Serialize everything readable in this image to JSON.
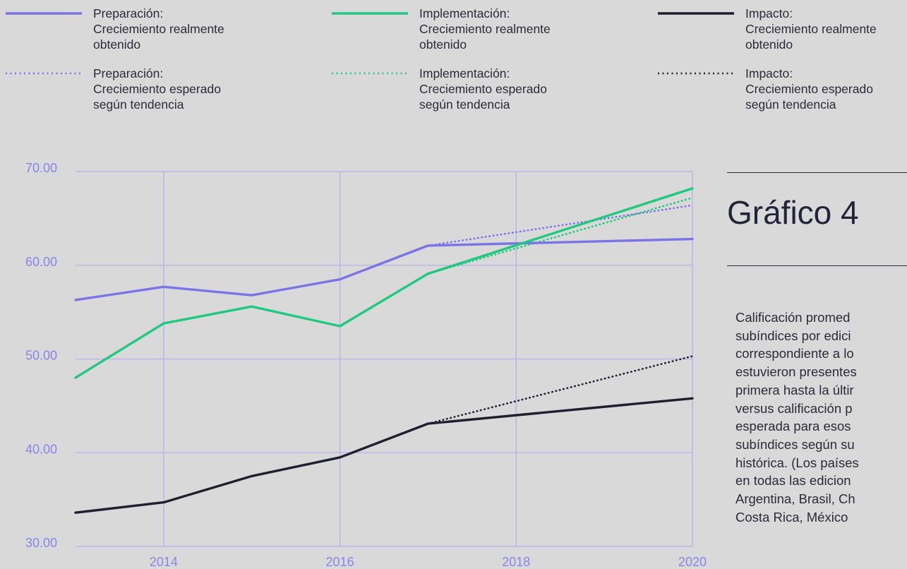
{
  "legend": [
    {
      "lines": [
        "Preparación:",
        "Creciemiento realmente",
        "obtenido"
      ],
      "color": "#7b74e6",
      "style": "solid"
    },
    {
      "lines": [
        "Implementación:",
        "Creciemiento realmente",
        "obtenido"
      ],
      "color": "#1fc97f",
      "style": "solid"
    },
    {
      "lines": [
        "Impacto:",
        "Creciemiento realmente",
        "obtenido"
      ],
      "color": "#1f1f30",
      "style": "solid"
    },
    {
      "lines": [
        "Preparación:",
        "Creciemiento esperado",
        "según tendencia"
      ],
      "color": "#7b74e6",
      "style": "dotted"
    },
    {
      "lines": [
        "Implementación:",
        "Creciemiento esperado",
        "según tendencia"
      ],
      "color": "#1fc97f",
      "style": "dotted"
    },
    {
      "lines": [
        "Impacto:",
        "Creciemiento esperado",
        "según tendencia"
      ],
      "color": "#1f1f30",
      "style": "dotted"
    }
  ],
  "chart_title": "Gráfico 4",
  "description_lines": [
    "Calificación promed",
    "subíndices por edici",
    "correspondiente a lo",
    "estuvieron presentes",
    "primera hasta la últir",
    "versus calificación p",
    "esperada para esos",
    "subíndices según su",
    "histórica. (Los países",
    "en todas las edicion",
    "Argentina, Brasil, Ch",
    "Costa Rica, México"
  ],
  "chart_data": {
    "type": "line",
    "title": "Gráfico 4",
    "x_ticks": [
      "2014",
      "2016",
      "2018",
      "2020"
    ],
    "y_ticks": [
      "30.00",
      "40.00",
      "50.00",
      "60.00",
      "70.00"
    ],
    "ylim": [
      30,
      70
    ],
    "xlim": [
      2013,
      2020
    ],
    "grid": true,
    "colors": {
      "axis": "#8a84ea",
      "grid": "#b3b0ee",
      "preparacion": "#7b74e6",
      "implementacion": "#1fc97f",
      "impacto": "#1f1f30"
    },
    "series": [
      {
        "name": "Preparación: Creciemiento realmente obtenido",
        "color": "#7b74e6",
        "style": "solid",
        "x": [
          2013,
          2014,
          2015,
          2016,
          2017,
          2020
        ],
        "y": [
          56.3,
          57.7,
          56.8,
          58.5,
          62.1,
          62.8
        ]
      },
      {
        "name": "Implementación: Creciemiento realmente obtenido",
        "color": "#1fc97f",
        "style": "solid",
        "x": [
          2013,
          2014,
          2015,
          2016,
          2017,
          2020
        ],
        "y": [
          48.0,
          53.8,
          55.6,
          53.5,
          59.1,
          68.2
        ]
      },
      {
        "name": "Impacto: Creciemiento realmente obtenido",
        "color": "#1f1f30",
        "style": "solid",
        "x": [
          2013,
          2014,
          2015,
          2016,
          2017,
          2020
        ],
        "y": [
          33.6,
          34.7,
          37.5,
          39.5,
          43.1,
          45.8
        ]
      },
      {
        "name": "Preparación: Creciemiento esperado según tendencia",
        "color": "#7b74e6",
        "style": "dotted",
        "x": [
          2017,
          2020
        ],
        "y": [
          62.1,
          66.4
        ]
      },
      {
        "name": "Implementación: Creciemiento esperado según tendencia",
        "color": "#1fc97f",
        "style": "dotted",
        "x": [
          2017,
          2020
        ],
        "y": [
          59.1,
          67.2
        ]
      },
      {
        "name": "Impacto: Creciemiento esperado según tendencia",
        "color": "#1f1f30",
        "style": "dotted",
        "x": [
          2017,
          2020
        ],
        "y": [
          43.1,
          50.3
        ]
      }
    ]
  }
}
